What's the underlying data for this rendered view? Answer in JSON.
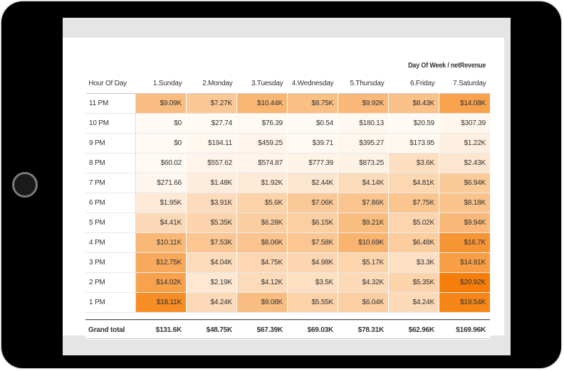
{
  "report": {
    "header_title": "Day Of Week / netRevenue",
    "row_header_label": "Hour Of Day",
    "columns": [
      "1.Sunday",
      "2.Monday",
      "3.Tuesday",
      "4.Wednesday",
      "5.Thursday",
      "6.Friday",
      "7.Saturday"
    ],
    "rows": [
      {
        "hour": "11 PM",
        "cells": [
          "$9.09K",
          "$7.27K",
          "$10.44K",
          "$8.75K",
          "$9.92K",
          "$8.43K",
          "$14.08K"
        ]
      },
      {
        "hour": "10 PM",
        "cells": [
          "$0",
          "$27.74",
          "$76.39",
          "$0.54",
          "$180.13",
          "$20.59",
          "$307.39"
        ]
      },
      {
        "hour": "9 PM",
        "cells": [
          "$0",
          "$194.11",
          "$459.25",
          "$39.71",
          "$395.27",
          "$173.95",
          "$1.22K"
        ]
      },
      {
        "hour": "8 PM",
        "cells": [
          "$60.02",
          "$557.62",
          "$574.87",
          "$777.39",
          "$873.25",
          "$3.6K",
          "$2.43K"
        ]
      },
      {
        "hour": "7 PM",
        "cells": [
          "$271.66",
          "$1.48K",
          "$1.92K",
          "$2.44K",
          "$4.14K",
          "$4.81K",
          "$6.94K"
        ]
      },
      {
        "hour": "6 PM",
        "cells": [
          "$1.95K",
          "$3.91K",
          "$5.6K",
          "$7.06K",
          "$7.86K",
          "$7.75K",
          "$8.18K"
        ]
      },
      {
        "hour": "5 PM",
        "cells": [
          "$4.41K",
          "$5.35K",
          "$6.28K",
          "$6.15K",
          "$9.21K",
          "$5.02K",
          "$9.94K"
        ]
      },
      {
        "hour": "4 PM",
        "cells": [
          "$10.11K",
          "$7.53K",
          "$8.06K",
          "$7.58K",
          "$10.69K",
          "$6.48K",
          "$16.7K"
        ]
      },
      {
        "hour": "3 PM",
        "cells": [
          "$12.75K",
          "$4.04K",
          "$4.75K",
          "$4.98K",
          "$5.17K",
          "$3.3K",
          "$14.91K"
        ]
      },
      {
        "hour": "2 PM",
        "cells": [
          "$14.02K",
          "$2.19K",
          "$4.12K",
          "$3.5K",
          "$4.32K",
          "$5.35K",
          "$20.92K"
        ]
      },
      {
        "hour": "1 PM",
        "cells": [
          "$18.11K",
          "$4.24K",
          "$9.08K",
          "$5.55K",
          "$6.04K",
          "$4.24K",
          "$19.54K"
        ]
      }
    ],
    "total_label": "Grand total",
    "totals": [
      "$131.6K",
      "$48.75K",
      "$67.39K",
      "$69.03K",
      "$78.31K",
      "$62.96K",
      "$169.96K"
    ]
  },
  "colors": {
    "heat_low": "#fffaf5",
    "heat_high": "#f57f0a",
    "tablet_frame": "#000000",
    "screen_bg": "#e5e5e5"
  }
}
